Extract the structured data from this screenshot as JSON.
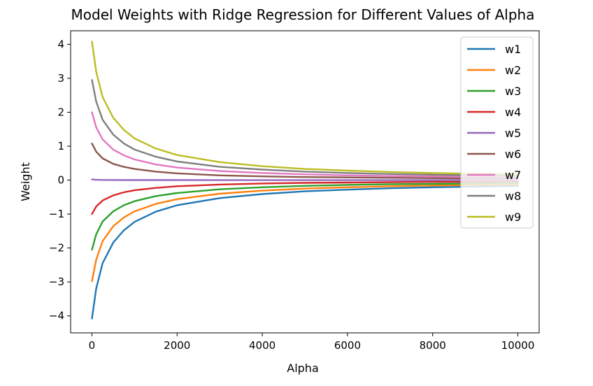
{
  "chart_data": {
    "type": "line",
    "title": "Model Weights with Ridge Regression for Different Values of Alpha",
    "xlabel": "Alpha",
    "ylabel": "Weight",
    "xlim": [
      -500,
      10500
    ],
    "ylim": [
      -4.5,
      4.4
    ],
    "xticks": [
      0,
      2000,
      4000,
      6000,
      8000,
      10000
    ],
    "xtick_labels": [
      "0",
      "2000",
      "4000",
      "6000",
      "8000",
      "10000"
    ],
    "yticks": [
      -4,
      -3,
      -2,
      -1,
      0,
      1,
      2,
      3,
      4
    ],
    "ytick_labels": [
      "−4",
      "−3",
      "−2",
      "−1",
      "0",
      "1",
      "2",
      "3",
      "4"
    ],
    "grid": false,
    "legend_position": "top-right",
    "x": [
      0,
      100,
      250,
      500,
      750,
      1000,
      1500,
      2000,
      3000,
      4000,
      5000,
      6000,
      7000,
      8000,
      9000,
      10000
    ],
    "series": [
      {
        "name": "w1",
        "color": "#1f77b4",
        "values": [
          -4.08,
          -3.2,
          -2.45,
          -1.84,
          -1.48,
          -1.23,
          -0.93,
          -0.74,
          -0.53,
          -0.41,
          -0.33,
          -0.28,
          -0.24,
          -0.21,
          -0.19,
          -0.17
        ]
      },
      {
        "name": "w2",
        "color": "#ff7f0e",
        "values": [
          -2.98,
          -2.35,
          -1.8,
          -1.36,
          -1.1,
          -0.92,
          -0.7,
          -0.56,
          -0.4,
          -0.31,
          -0.25,
          -0.21,
          -0.18,
          -0.16,
          -0.14,
          -0.13
        ]
      },
      {
        "name": "w3",
        "color": "#2ca02c",
        "values": [
          -2.05,
          -1.6,
          -1.22,
          -0.92,
          -0.74,
          -0.62,
          -0.47,
          -0.38,
          -0.27,
          -0.21,
          -0.17,
          -0.14,
          -0.12,
          -0.11,
          -0.1,
          -0.09
        ]
      },
      {
        "name": "w4",
        "color": "#d62728",
        "values": [
          -1.0,
          -0.78,
          -0.6,
          -0.45,
          -0.36,
          -0.3,
          -0.23,
          -0.18,
          -0.13,
          -0.1,
          -0.08,
          -0.07,
          -0.06,
          -0.05,
          -0.05,
          -0.04
        ]
      },
      {
        "name": "w5",
        "color": "#9467bd",
        "values": [
          0.02,
          0.01,
          0.005,
          0.003,
          0.002,
          0.002,
          0.001,
          0.001,
          0.0,
          0.0,
          0.0,
          0.0,
          0.0,
          0.0,
          0.0,
          0.0
        ]
      },
      {
        "name": "w6",
        "color": "#8c564b",
        "values": [
          1.08,
          0.84,
          0.64,
          0.48,
          0.39,
          0.33,
          0.25,
          0.2,
          0.14,
          0.11,
          0.09,
          0.08,
          0.07,
          0.06,
          0.05,
          0.05
        ]
      },
      {
        "name": "w7",
        "color": "#e377c2",
        "values": [
          2.0,
          1.56,
          1.2,
          0.9,
          0.73,
          0.61,
          0.46,
          0.37,
          0.27,
          0.21,
          0.17,
          0.14,
          0.12,
          0.11,
          0.1,
          0.09
        ]
      },
      {
        "name": "w8",
        "color": "#7f7f7f",
        "values": [
          2.95,
          2.32,
          1.78,
          1.34,
          1.08,
          0.9,
          0.69,
          0.55,
          0.39,
          0.31,
          0.25,
          0.21,
          0.18,
          0.16,
          0.14,
          0.13
        ]
      },
      {
        "name": "w9",
        "color": "#bcbd22",
        "values": [
          4.08,
          3.2,
          2.45,
          1.84,
          1.48,
          1.23,
          0.93,
          0.74,
          0.53,
          0.41,
          0.33,
          0.28,
          0.24,
          0.21,
          0.19,
          0.17
        ]
      }
    ]
  }
}
